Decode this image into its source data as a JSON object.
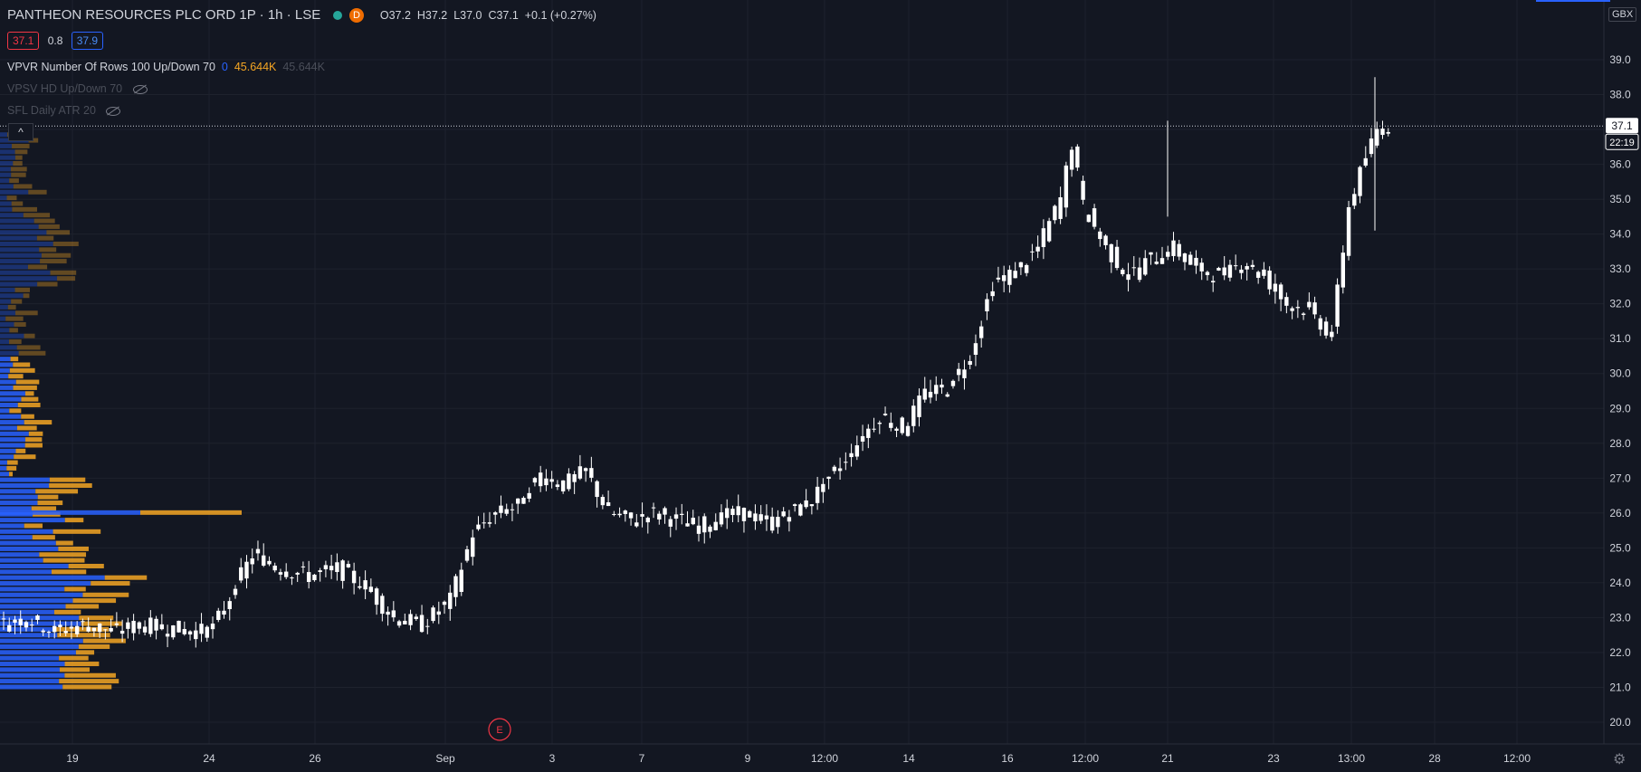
{
  "legend": {
    "title": "PANTHEON RESOURCES PLC ORD 1P · 1h · LSE",
    "d_badge": "D",
    "open": "O37.2",
    "high": "H37.2",
    "low": "L37.0",
    "close": "C37.1",
    "change": "+0.1 (+0.27%)"
  },
  "prices": {
    "sell": "37.1",
    "spread": "0.8",
    "buy": "37.9"
  },
  "indicators": [
    {
      "name": "VPVR Number Of Rows 100 Up/Down 70",
      "v1": "0",
      "v2": "45.644K",
      "v3": "45.644K"
    },
    {
      "name": "VPSV HD Up/Down 70"
    },
    {
      "name": "SFL Daily ATR 20"
    }
  ],
  "currency_label": "GBX",
  "collapse_label": "^",
  "earnings_marker": "E",
  "last_price_label": "37.1",
  "countdown_label": "22:19",
  "colors": {
    "background": "#131722",
    "candle": "#ffffff",
    "volume_up": "#2962ff",
    "volume_down": "#f5a623",
    "grid": "#1e222d",
    "text": "#d1d4dc",
    "earnings": "#f23645"
  },
  "chart_data": {
    "type": "candlestick",
    "y_axis": {
      "ylim": [
        19.6,
        40.5
      ],
      "ticks": [
        20.0,
        21.0,
        22.0,
        23.0,
        24.0,
        25.0,
        26.0,
        27.0,
        28.0,
        29.0,
        30.0,
        31.0,
        32.0,
        33.0,
        34.0,
        35.0,
        36.0,
        37.0,
        38.0,
        39.0
      ]
    },
    "x_axis": {
      "ticks": [
        "19",
        "24",
        "26",
        "Sep",
        "3",
        "7",
        "9",
        "12:00",
        "14",
        "16",
        "12:00",
        "21",
        "23",
        "13:00",
        "28",
        "12:00"
      ]
    },
    "grid": true,
    "last_price": 37.1,
    "approx_close_path": [
      [
        0,
        22.8
      ],
      [
        5,
        23.0
      ],
      [
        10,
        22.6
      ],
      [
        15,
        22.8
      ],
      [
        20,
        22.6
      ],
      [
        25,
        22.8
      ],
      [
        30,
        22.7
      ],
      [
        35,
        22.6
      ],
      [
        38,
        22.7
      ],
      [
        41,
        23.6
      ],
      [
        45,
        24.8
      ],
      [
        50,
        24.4
      ],
      [
        55,
        24.2
      ],
      [
        60,
        24.4
      ],
      [
        65,
        23.9
      ],
      [
        70,
        23.0
      ],
      [
        75,
        22.8
      ],
      [
        80,
        23.5
      ],
      [
        84,
        25.4
      ],
      [
        88,
        26.0
      ],
      [
        92,
        26.2
      ],
      [
        96,
        27.1
      ],
      [
        100,
        26.8
      ],
      [
        104,
        27.2
      ],
      [
        108,
        26.0
      ],
      [
        112,
        25.8
      ],
      [
        116,
        26.0
      ],
      [
        120,
        25.8
      ],
      [
        124,
        25.6
      ],
      [
        128,
        25.9
      ],
      [
        132,
        26.0
      ],
      [
        136,
        25.7
      ],
      [
        140,
        26.0
      ],
      [
        144,
        26.4
      ],
      [
        148,
        27.2
      ],
      [
        152,
        28.0
      ],
      [
        156,
        28.8
      ],
      [
        160,
        28.4
      ],
      [
        164,
        29.4
      ],
      [
        168,
        29.6
      ],
      [
        172,
        30.5
      ],
      [
        176,
        32.6
      ],
      [
        180,
        32.9
      ],
      [
        184,
        33.6
      ],
      [
        188,
        35.0
      ],
      [
        190,
        36.6
      ],
      [
        192,
        34.8
      ],
      [
        196,
        33.6
      ],
      [
        200,
        32.8
      ],
      [
        204,
        33.3
      ],
      [
        208,
        33.6
      ],
      [
        212,
        33.0
      ],
      [
        216,
        32.8
      ],
      [
        220,
        33.2
      ],
      [
        224,
        32.8
      ],
      [
        228,
        32.0
      ],
      [
        232,
        31.8
      ],
      [
        236,
        31.1
      ],
      [
        239,
        34.8
      ],
      [
        242,
        36.2
      ],
      [
        244,
        37.0
      ],
      [
        246,
        37.1
      ]
    ],
    "volume_profile": "horizontal volume-by-price histogram at left edge, blue (up) and orange (down) segments"
  }
}
